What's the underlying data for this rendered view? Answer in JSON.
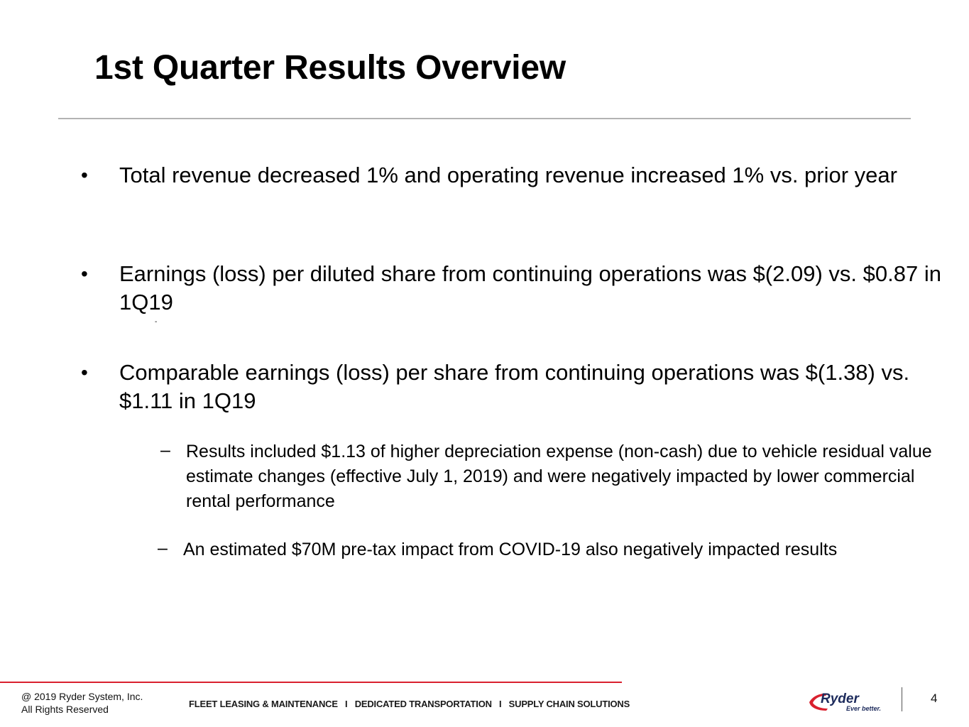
{
  "slide": {
    "title": "1st Quarter Results Overview",
    "bullet_symbol": "•",
    "sub_bullet_symbol": "–",
    "bullets": [
      {
        "text": "Total revenue decreased 1% and operating revenue increased 1% vs. prior year"
      },
      {
        "text": "Earnings (loss) per diluted share from continuing operations was $(2.09) vs. $0.87 in 1Q19"
      },
      {
        "text": "Comparable earnings (loss) per share from continuing operations was $(1.38) vs. $1.11 in 1Q19"
      }
    ],
    "stray_mark": "-",
    "sub_bullets": [
      {
        "text": "Results included $1.13 of higher depreciation expense (non-cash) due to vehicle residual value estimate changes (effective July 1, 2019) and were negatively impacted by lower commercial rental performance"
      },
      {
        "text": "An estimated $70M pre-tax impact from COVID-19 also negatively impacted results"
      }
    ]
  },
  "footer": {
    "copyright_line1": "@ 2019 Ryder System, Inc.",
    "copyright_line2": "All Rights Reserved",
    "tagline": "FLEET LEASING & MAINTENANCE   I   DEDICATED TRANSPORTATION   I   SUPPLY CHAIN SOLUTIONS",
    "logo_brand": "Ryder",
    "logo_slogan": "Ever better.",
    "page_number": "4"
  },
  "colors": {
    "accent_red": "#d9202e",
    "logo_navy": "#1d2b5c",
    "rule_gray": "#b3b3b3"
  }
}
